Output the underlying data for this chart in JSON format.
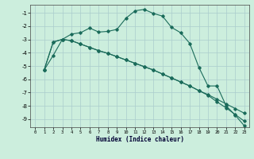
{
  "xlabel": "Humidex (Indice chaleur)",
  "bg_color": "#cceedd",
  "grid_color": "#aacccc",
  "line_color": "#1a6b5a",
  "xlim": [
    -0.5,
    23.5
  ],
  "ylim": [
    -9.6,
    -0.4
  ],
  "yticks": [
    -9,
    -8,
    -7,
    -6,
    -5,
    -4,
    -3,
    -2,
    -1
  ],
  "xticks": [
    0,
    1,
    2,
    3,
    4,
    5,
    6,
    7,
    8,
    9,
    10,
    11,
    12,
    13,
    14,
    15,
    16,
    17,
    18,
    19,
    20,
    21,
    22,
    23
  ],
  "curve1_x": [
    1,
    2,
    3,
    4,
    5,
    6,
    7,
    8,
    9,
    10,
    11,
    12,
    13,
    14,
    15,
    16,
    17,
    18,
    19,
    20,
    21,
    22,
    23
  ],
  "curve1_y": [
    -5.3,
    -4.2,
    -3.0,
    -2.6,
    -2.5,
    -2.15,
    -2.45,
    -2.4,
    -2.25,
    -1.4,
    -0.85,
    -0.75,
    -1.05,
    -1.25,
    -2.1,
    -2.5,
    -3.3,
    -5.1,
    -6.5,
    -6.5,
    -8.0,
    -8.7,
    -9.5
  ],
  "curve2_x": [
    1,
    2,
    3,
    4,
    5,
    6,
    7,
    8,
    9,
    10,
    11,
    12,
    13,
    14,
    15,
    16,
    17,
    18,
    19,
    20,
    21,
    22,
    23
  ],
  "curve2_y": [
    -5.3,
    -3.2,
    -3.0,
    -3.1,
    -3.35,
    -3.6,
    -3.85,
    -4.05,
    -4.3,
    -4.55,
    -4.8,
    -5.05,
    -5.3,
    -5.6,
    -5.9,
    -6.2,
    -6.5,
    -6.85,
    -7.15,
    -7.5,
    -7.85,
    -8.2,
    -8.55
  ],
  "curve3_x": [
    1,
    2,
    3,
    4,
    5,
    6,
    7,
    8,
    9,
    10,
    11,
    12,
    13,
    14,
    15,
    16,
    17,
    18,
    19,
    20,
    21,
    22,
    23
  ],
  "curve3_y": [
    -5.3,
    -3.2,
    -3.0,
    -3.1,
    -3.35,
    -3.6,
    -3.85,
    -4.05,
    -4.3,
    -4.55,
    -4.8,
    -5.05,
    -5.3,
    -5.6,
    -5.9,
    -6.2,
    -6.5,
    -6.85,
    -7.2,
    -7.7,
    -8.15,
    -8.65,
    -9.15
  ]
}
